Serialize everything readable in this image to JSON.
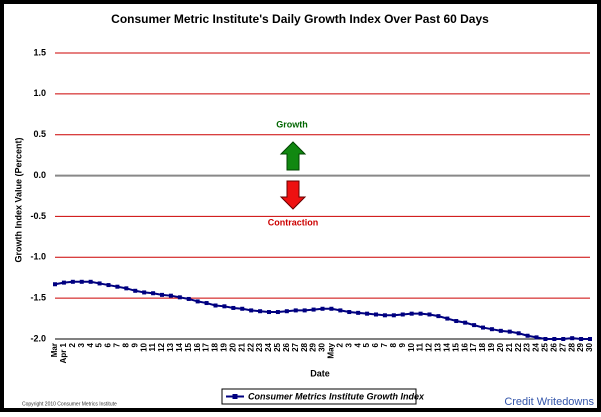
{
  "chart_data": {
    "type": "line",
    "title": "Consumer Metric Institute's Daily Growth Index Over Past 60 Days",
    "x_label": "Date",
    "y_label": "Growth Index Value (Percent)",
    "categories": [
      "Mar",
      "Apr 1",
      "2",
      "3",
      "4",
      "5",
      "6",
      "7",
      "8",
      "9",
      "10",
      "11",
      "12",
      "13",
      "14",
      "15",
      "16",
      "17",
      "18",
      "19",
      "20",
      "21",
      "22",
      "23",
      "24",
      "25",
      "26",
      "27",
      "28",
      "29",
      "30",
      "May",
      "2",
      "3",
      "4",
      "5",
      "6",
      "7",
      "8",
      "9",
      "10",
      "11",
      "12",
      "13",
      "14",
      "15",
      "16",
      "17",
      "18",
      "19",
      "20",
      "21",
      "22",
      "23",
      "24",
      "25",
      "26",
      "27",
      "28",
      "29",
      "30"
    ],
    "series": [
      {
        "name": "Consumer Metrics Institute Growth Index",
        "color": "#000080",
        "values": [
          -1.33,
          -1.31,
          -1.3,
          -1.3,
          -1.3,
          -1.32,
          -1.34,
          -1.36,
          -1.38,
          -1.41,
          -1.43,
          -1.44,
          -1.46,
          -1.47,
          -1.49,
          -1.51,
          -1.54,
          -1.56,
          -1.59,
          -1.6,
          -1.62,
          -1.63,
          -1.65,
          -1.66,
          -1.67,
          -1.67,
          -1.66,
          -1.65,
          -1.65,
          -1.64,
          -1.63,
          -1.63,
          -1.65,
          -1.67,
          -1.68,
          -1.69,
          -1.7,
          -1.71,
          -1.71,
          -1.7,
          -1.69,
          -1.69,
          -1.7,
          -1.72,
          -1.75,
          -1.78,
          -1.8,
          -1.83,
          -1.86,
          -1.88,
          -1.9,
          -1.91,
          -1.93,
          -1.96,
          -1.98,
          -2.0,
          -2.0,
          -2.0,
          -1.99,
          -2.0,
          -2.0
        ]
      }
    ],
    "ylim": [
      -2.0,
      1.5
    ],
    "yticks": [
      {
        "value": -2.0,
        "label": "-2.0"
      },
      {
        "value": -1.5,
        "label": "-1.5"
      },
      {
        "value": -1.0,
        "label": "-1.0"
      },
      {
        "value": -0.5,
        "label": "-0.5"
      },
      {
        "value": 0,
        "label": "0.0"
      },
      {
        "value": 0.5,
        "label": "0.5"
      },
      {
        "value": 1.0,
        "label": "1.0"
      },
      {
        "value": 1.5,
        "label": "1.5"
      }
    ],
    "grid": true,
    "grid_color": "#cc0000",
    "annotations": {
      "growth": "Growth",
      "contraction": "Contraction"
    },
    "copyright": "Copyright 2010 Consumer Metrics Institute",
    "credit": "Credit Writedowns"
  }
}
